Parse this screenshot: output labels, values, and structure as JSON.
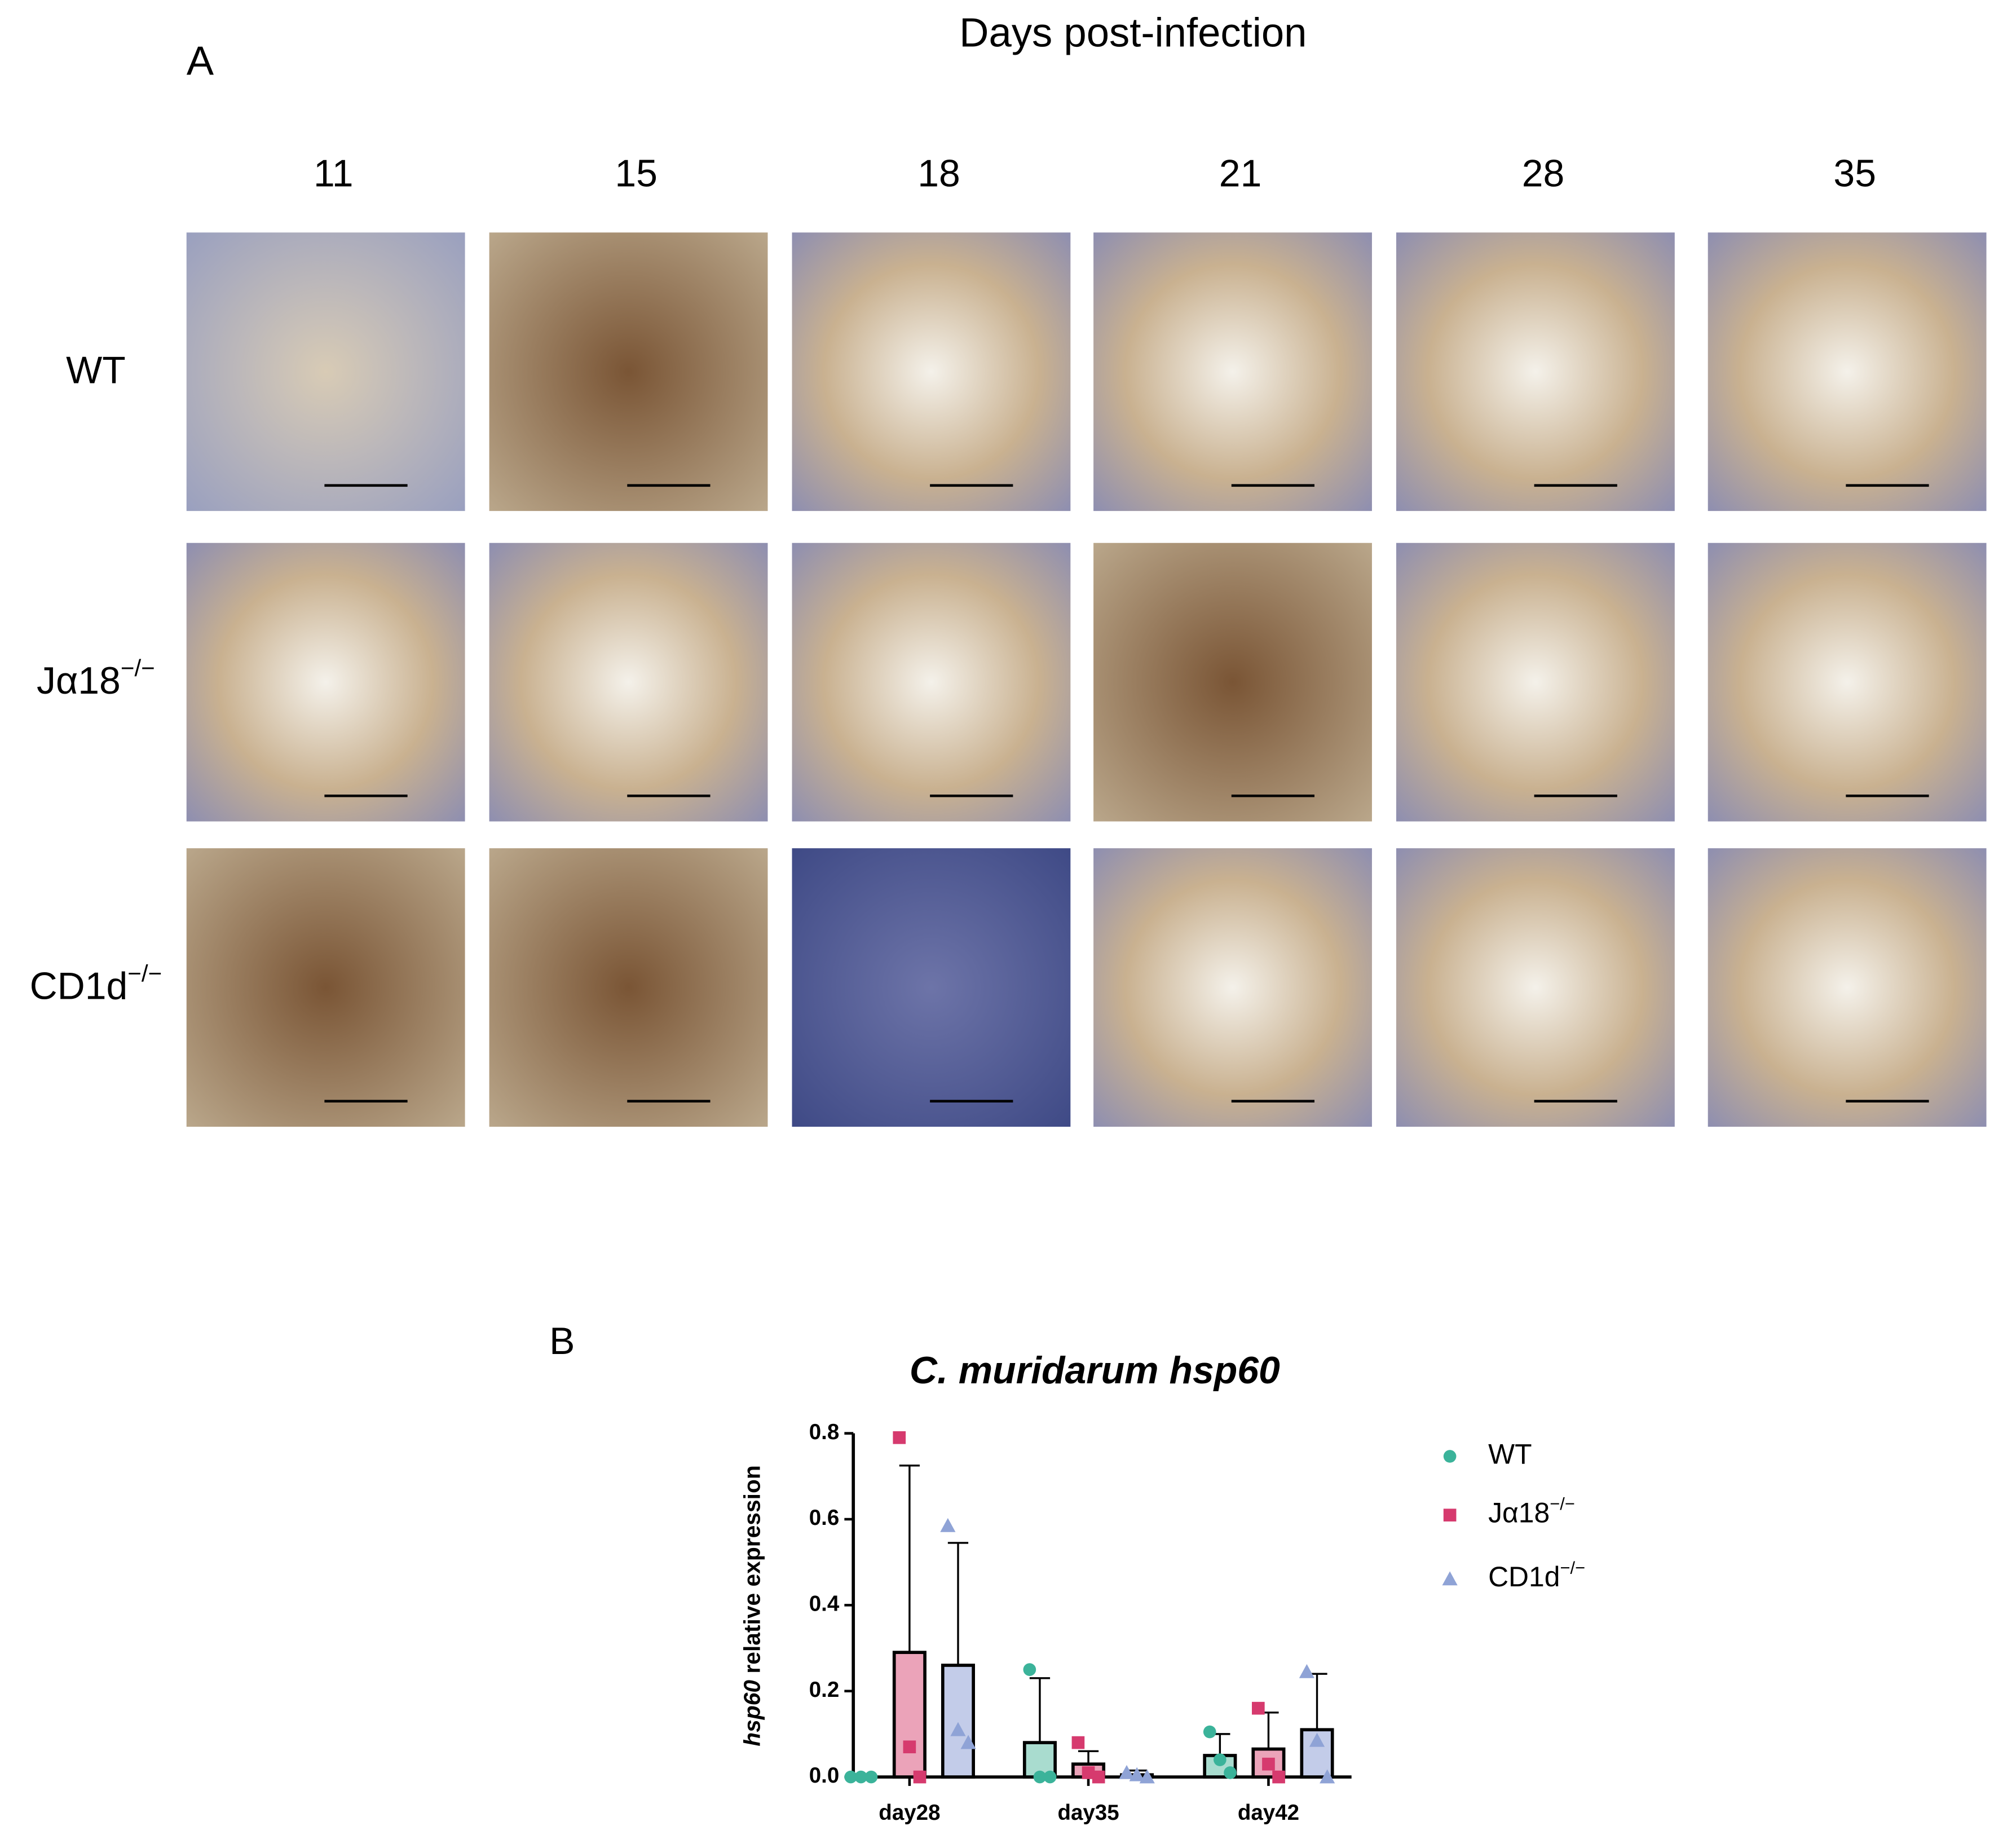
{
  "panel_a": {
    "label": "A",
    "title": "Days post-infection",
    "columns": [
      "11",
      "15",
      "18",
      "21",
      "28",
      "35"
    ],
    "rows": [
      {
        "text": "WT"
      },
      {
        "text": "Jα18",
        "sup": "−/−"
      },
      {
        "text": "CD1d",
        "sup": "−/−"
      }
    ]
  },
  "chart_data": {
    "type": "bar",
    "panel_label": "B",
    "title": "C. muridarum hsp60",
    "ylabel_italic": "hsp60",
    "ylabel": "relative expression",
    "categories": [
      "day28",
      "day35",
      "day42"
    ],
    "ylim": [
      0,
      0.8
    ],
    "yticks": [
      {
        "value": 0,
        "label": "0.0"
      },
      0.2,
      0.4,
      0.6,
      0.8
    ],
    "series": [
      {
        "name": "WT",
        "color": "#3bb39a",
        "fill_color": "#a9dccf",
        "marker": "circle",
        "values": [
          0,
          0.08,
          0.05
        ],
        "errors": [
          0,
          0.15,
          0.05
        ],
        "points": [
          [
            0,
            0,
            0
          ],
          [
            0.25,
            0,
            0
          ],
          [
            0.105,
            0.04,
            0.01
          ]
        ]
      },
      {
        "name": "Jα18",
        "name_sup": "−/−",
        "color": "#d63a6e",
        "fill_color": "#eba3b9",
        "marker": "square",
        "values": [
          0.29,
          0.03,
          0.065
        ],
        "errors": [
          0.435,
          0.03,
          0.085
        ],
        "points": [
          [
            0.79,
            0.07,
            0
          ],
          [
            0.08,
            0.01,
            0
          ],
          [
            0.16,
            0.03,
            0
          ]
        ]
      },
      {
        "name": "CD1d",
        "name_sup": "−/−",
        "color": "#8fa3d6",
        "fill_color": "#c3cce9",
        "marker": "triangle",
        "values": [
          0.26,
          0.005,
          0.11
        ],
        "errors": [
          0.285,
          0.01,
          0.13
        ],
        "points": [
          [
            0.585,
            0.11,
            0.08
          ],
          [
            0.01,
            0.005,
            0
          ],
          [
            0.245,
            0.085,
            0
          ]
        ]
      }
    ]
  }
}
